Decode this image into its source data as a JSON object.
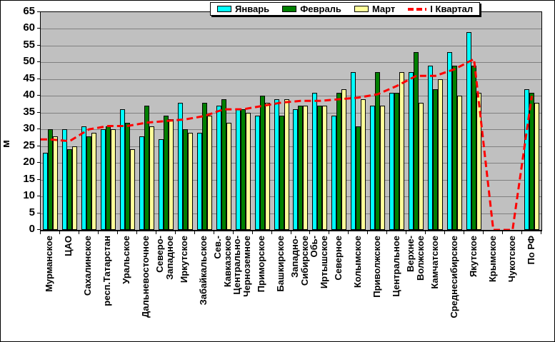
{
  "chart_data": {
    "type": "bar",
    "title": "",
    "ylabel": "м",
    "ylim": [
      0,
      65
    ],
    "ytick_step": 5,
    "grid": true,
    "legend_position": "top-center",
    "plot_bg_color": "#C0C0C0",
    "gridline_color": "#808080",
    "categories": [
      "Мурманское",
      "ЦАО",
      "Сахалинское",
      "респ.Татарстан",
      "Уральское",
      "Дальневосточное",
      "Северо-\nЗападное",
      "Иркутское",
      "Забайкальское",
      "Сев.-\nКавказское",
      "Центрально-\nЧерноземное",
      "Приморское",
      "Башкирское",
      "Западно-\nСибирское",
      "Обь-\nИртышское",
      "Северное",
      "Колымское",
      "Приволжское",
      "Центральное",
      "Верхне-\nВолжское",
      "Камчатское",
      "Среднесибирское",
      "Якутское",
      "Крымское",
      "Чукотское",
      "По РФ"
    ],
    "series": [
      {
        "name": "Январь",
        "color": "#00FFFF",
        "values": [
          23,
          30,
          31,
          30,
          36,
          28,
          27,
          38,
          29,
          37,
          36,
          34,
          39,
          36,
          41,
          34,
          47,
          37,
          41,
          47,
          49,
          53,
          59,
          0,
          0,
          42
        ]
      },
      {
        "name": "Февраль",
        "color": "#008000",
        "values": [
          30,
          24,
          28,
          31,
          32,
          37,
          34,
          30,
          38,
          39,
          36,
          40,
          34,
          37,
          37,
          41,
          31,
          47,
          41,
          53,
          42,
          49,
          49,
          0,
          0,
          41
        ]
      },
      {
        "name": "Март",
        "color": "#FFFF99",
        "values": [
          28,
          25,
          29,
          30,
          24,
          31,
          33,
          29,
          34,
          32,
          35,
          38,
          39,
          37,
          37,
          42,
          39,
          37,
          47,
          38,
          45,
          40,
          41,
          0,
          0,
          38
        ]
      }
    ],
    "line_series": {
      "name": "I Квартал",
      "color": "#FF0000",
      "style": "dashed",
      "values": [
        27,
        26.5,
        30,
        31,
        31,
        32,
        32.5,
        33,
        34,
        36,
        36,
        37,
        38,
        38.5,
        38.5,
        39,
        39.5,
        40.5,
        43,
        46,
        46,
        48,
        51,
        0,
        0,
        40
      ]
    }
  }
}
